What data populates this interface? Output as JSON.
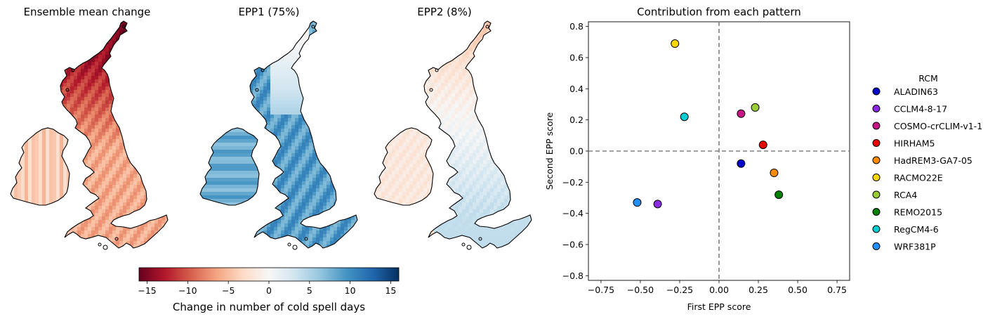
{
  "maps": {
    "panels": [
      {
        "title": "Ensemble mean change",
        "pattern": "mean"
      },
      {
        "title": "EPP1 (75%)",
        "pattern": "epp1"
      },
      {
        "title": "EPP2 (8%)",
        "pattern": "epp2"
      }
    ],
    "colorbar": {
      "label": "Change in number of cold spell days",
      "min": -16,
      "max": 16,
      "ticks": [
        -15,
        -10,
        -5,
        0,
        5,
        10,
        15
      ],
      "tick_labels": [
        "−15",
        "−10",
        "−5",
        "0",
        "5",
        "10",
        "15"
      ],
      "colormap": [
        "#67001f",
        "#b2182b",
        "#d6604d",
        "#f4a582",
        "#fddbc7",
        "#f7f7f7",
        "#d1e5f0",
        "#92c5de",
        "#4393c3",
        "#2166ac",
        "#053061"
      ]
    }
  },
  "chart_data": {
    "type": "scatter",
    "title": "Contribution from each pattern",
    "xlabel": "First EPP score",
    "ylabel": "Second EPP score",
    "xlim": [
      -0.83,
      0.83
    ],
    "ylim": [
      -0.83,
      0.83
    ],
    "xticks": [
      -0.75,
      -0.5,
      -0.25,
      0,
      0.25,
      0.5,
      0.75
    ],
    "xtick_labels": [
      "−0.75",
      "−0.50",
      "−0.25",
      "0.00",
      "0.25",
      "0.50",
      "0.75"
    ],
    "yticks": [
      -0.8,
      -0.6,
      -0.4,
      -0.2,
      0,
      0.2,
      0.4,
      0.6,
      0.8
    ],
    "ytick_labels": [
      "−0.8",
      "−0.6",
      "−0.4",
      "−0.2",
      "0.0",
      "0.2",
      "0.4",
      "0.6",
      "0.8"
    ],
    "reference_lines": {
      "x": 0,
      "y": 0,
      "style": "dashed",
      "color": "#808080"
    },
    "grid": false,
    "legend": {
      "title": "RCM",
      "placement": "right-outside"
    },
    "series": [
      {
        "name": "ALADIN63",
        "color": "#0000cd",
        "x": 0.14,
        "y": -0.08
      },
      {
        "name": "CCLM4-8-17",
        "color": "#8a2be2",
        "x": -0.39,
        "y": -0.34
      },
      {
        "name": "COSMO-crCLIM-v1-1",
        "color": "#c71585",
        "x": 0.14,
        "y": 0.24
      },
      {
        "name": "HIRHAM5",
        "color": "#ee0000",
        "x": 0.28,
        "y": 0.04
      },
      {
        "name": "HadREM3-GA7-05",
        "color": "#ff8c00",
        "x": 0.35,
        "y": -0.14
      },
      {
        "name": "RACMO22E",
        "color": "#ffd700",
        "x": -0.28,
        "y": 0.69
      },
      {
        "name": "RCA4",
        "color": "#9acd32",
        "x": 0.23,
        "y": 0.28
      },
      {
        "name": "REMO2015",
        "color": "#008000",
        "x": 0.38,
        "y": -0.28
      },
      {
        "name": "RegCM4-6",
        "color": "#00ced1",
        "x": -0.22,
        "y": 0.22
      },
      {
        "name": "WRF381P",
        "color": "#1e90ff",
        "x": -0.52,
        "y": -0.33
      }
    ]
  }
}
